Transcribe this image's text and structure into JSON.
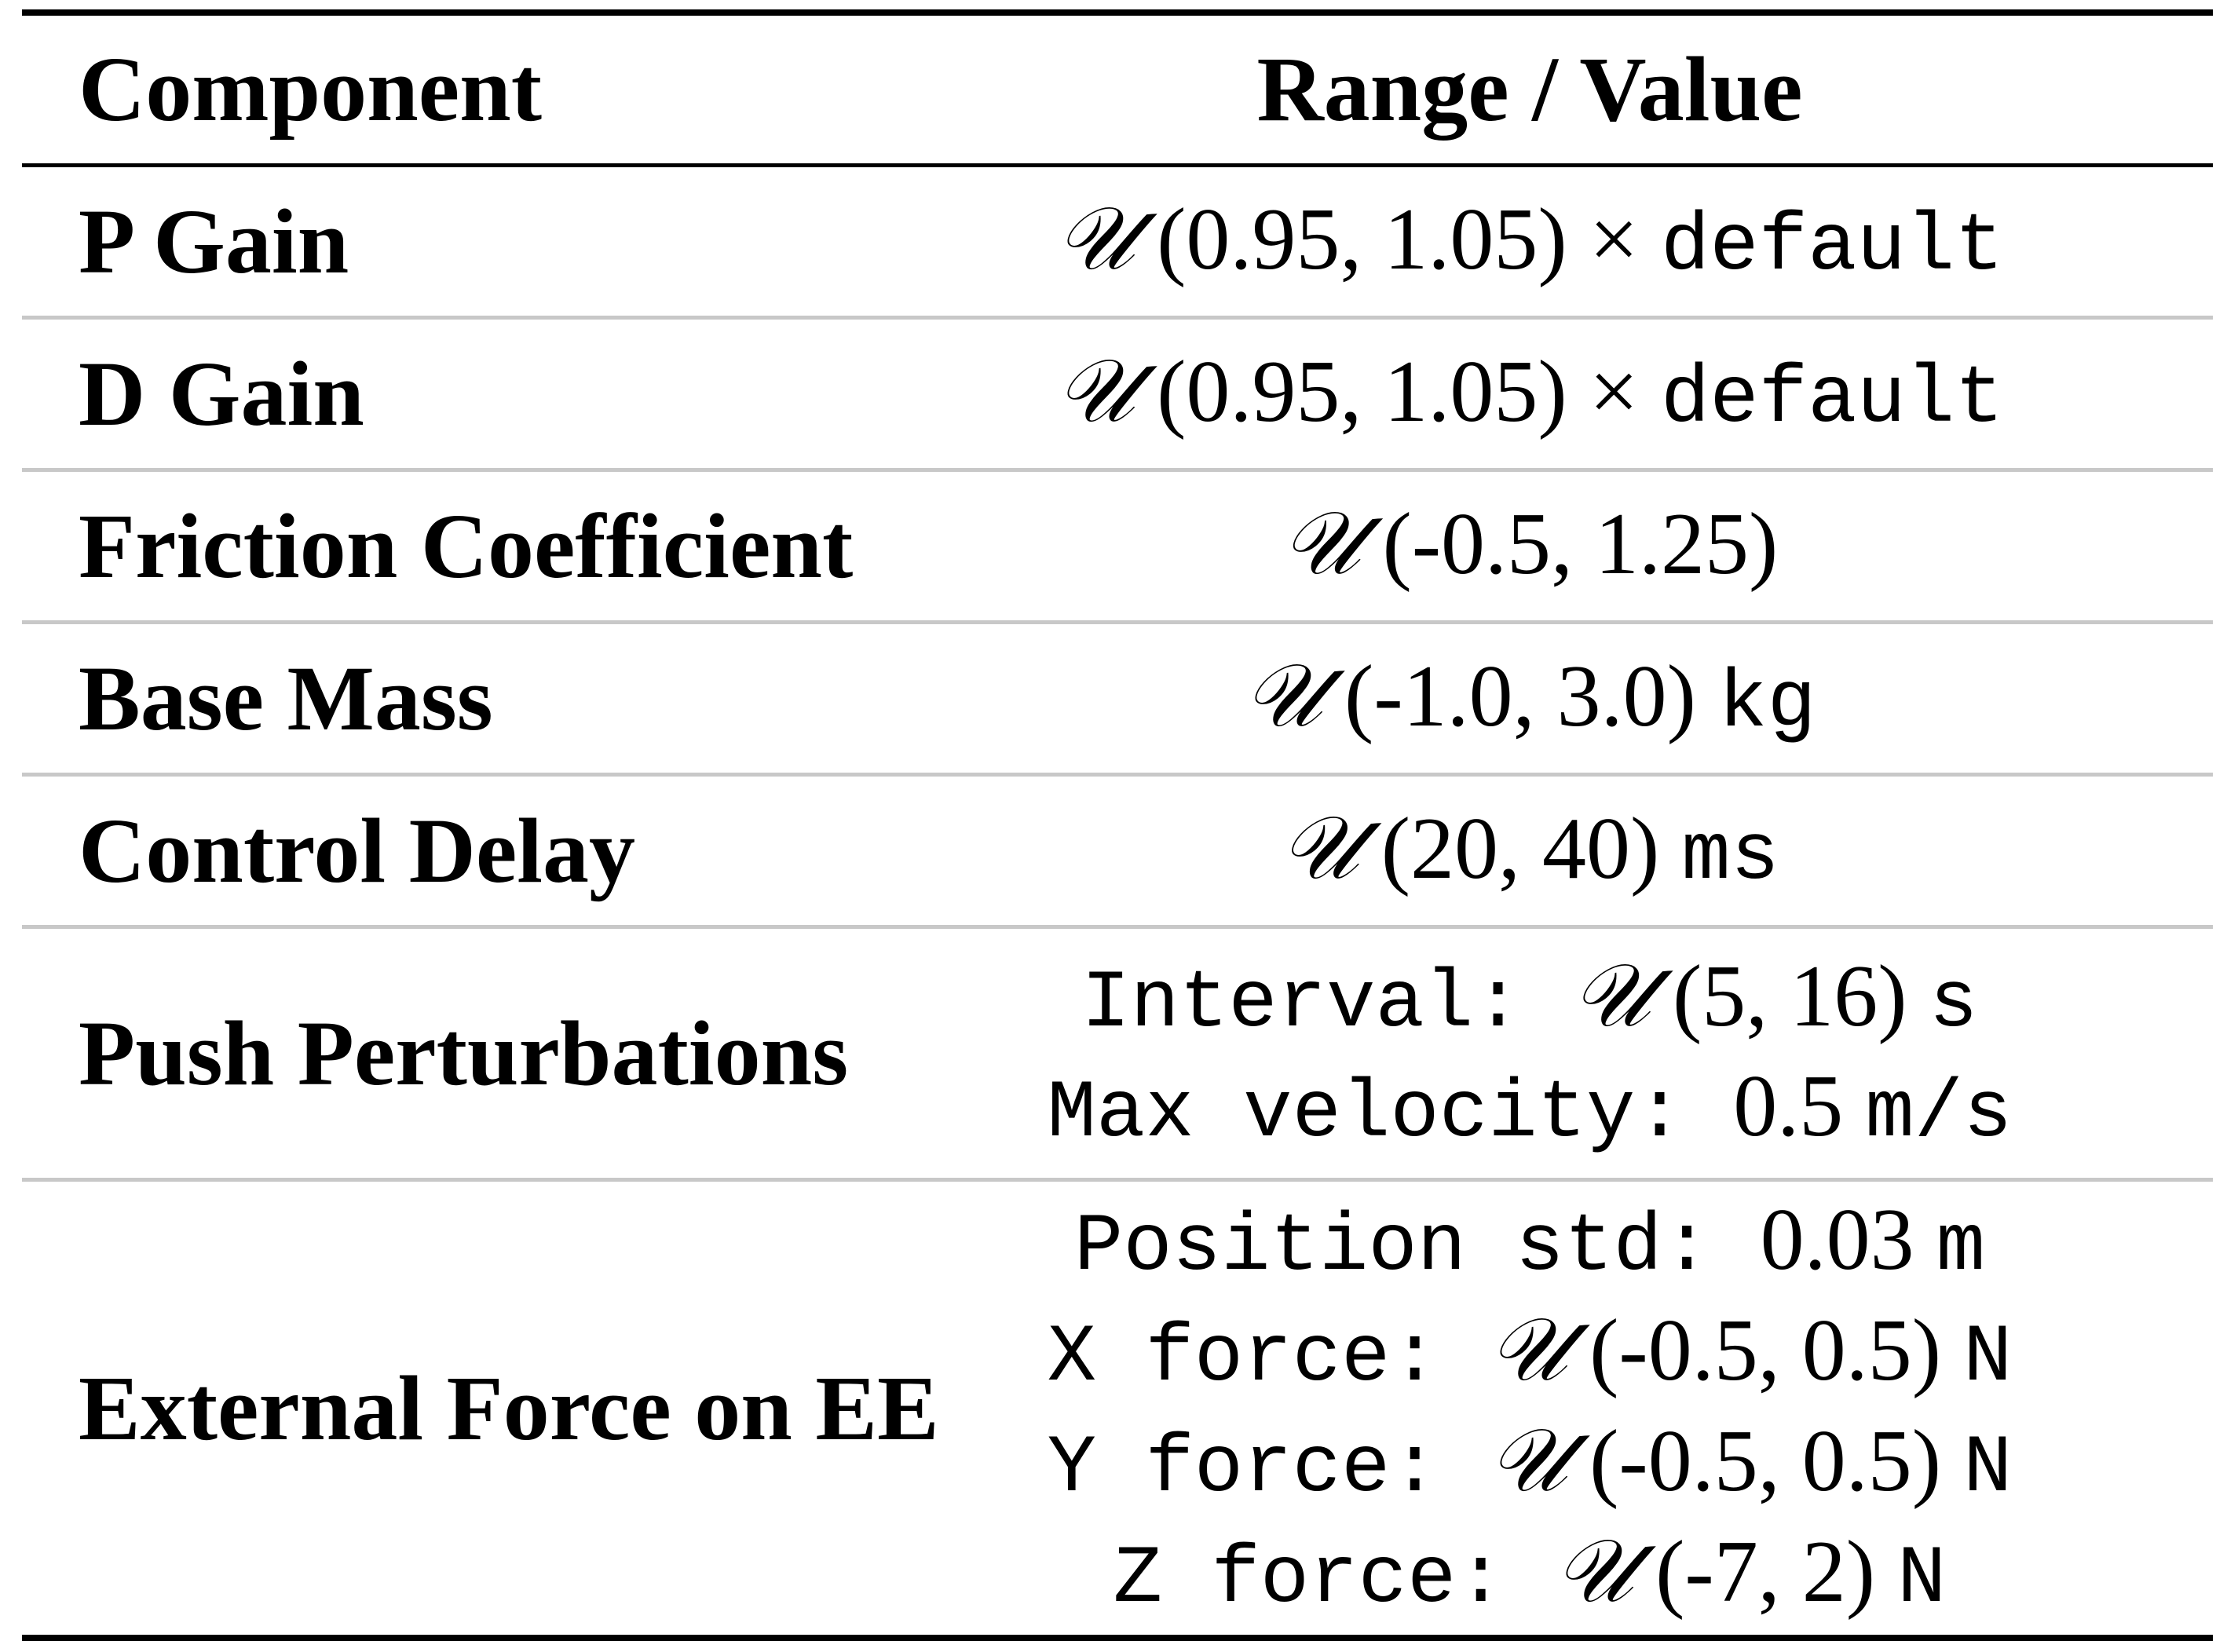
{
  "table": {
    "header": {
      "component": "Component",
      "value": "Range / Value"
    },
    "rows": [
      {
        "component": "P Gain",
        "lines": [
          {
            "dist": "𝒰",
            "args": " (0.95, 1.05) × ",
            "unit": "default"
          }
        ]
      },
      {
        "component": "D Gain",
        "lines": [
          {
            "dist": "𝒰",
            "args": " (0.95, 1.05) × ",
            "unit": "default"
          }
        ]
      },
      {
        "component": "Friction Coefficient",
        "lines": [
          {
            "dist": "𝒰",
            "args": " (-0.5, 1.25)",
            "unit": ""
          }
        ]
      },
      {
        "component": "Base Mass",
        "lines": [
          {
            "dist": "𝒰",
            "args": " (-1.0, 3.0) ",
            "unit": "kg"
          }
        ]
      },
      {
        "component": "Control Delay",
        "lines": [
          {
            "dist": "𝒰",
            "args": " (20, 40) ",
            "unit": "ms"
          }
        ]
      },
      {
        "component": "Push Perturbations",
        "lines": [
          {
            "prefix": "Interval: ",
            "dist": "𝒰",
            "args": " (5, 16) ",
            "unit": "s"
          },
          {
            "prefix": "Max velocity: ",
            "dist": "",
            "args": "0.5 ",
            "unit": "m/s"
          }
        ]
      },
      {
        "component": "External Force on EE",
        "lines": [
          {
            "prefix": "Position std: ",
            "dist": "",
            "args": "0.03 ",
            "unit": "m"
          },
          {
            "prefix": "X force: ",
            "dist": "𝒰",
            "args": " (-0.5, 0.5) ",
            "unit": "N"
          },
          {
            "prefix": "Y force: ",
            "dist": "𝒰",
            "args": " (-0.5, 0.5) ",
            "unit": "N"
          },
          {
            "prefix": "Z force: ",
            "dist": "𝒰",
            "args": " (-7, 2) ",
            "unit": "N"
          }
        ]
      }
    ]
  }
}
